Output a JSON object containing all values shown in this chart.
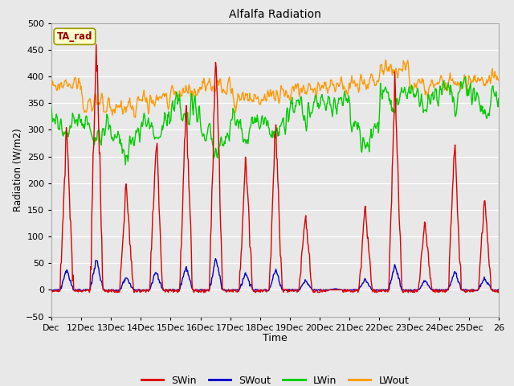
{
  "title": "Alfalfa Radiation",
  "xlabel": "Time",
  "ylabel": "Radiation (W/m2)",
  "ylim": [
    -50,
    500
  ],
  "xlim": [
    0,
    15
  ],
  "background_color": "#e8e8e8",
  "plot_bg_color": "#e8e8e8",
  "grid_color": "#ffffff",
  "annotation_text": "TA_rad",
  "annotation_bg": "#ffffcc",
  "annotation_border": "#999900",
  "annotation_text_color": "#990000",
  "line_colors": [
    "#dd0000",
    "#0000cc",
    "#00cc00",
    "#ff9900"
  ],
  "x_tick_labels": [
    "Dec",
    "12Dec",
    "13Dec",
    "14Dec",
    "15Dec",
    "16Dec",
    "17Dec",
    "18Dec",
    "19Dec",
    "20Dec",
    "21Dec",
    "22Dec",
    "23Dec",
    "24Dec",
    "25Dec",
    "26"
  ],
  "x_tick_positions": [
    0,
    1,
    2,
    3,
    4,
    5,
    6,
    7,
    8,
    9,
    10,
    11,
    12,
    13,
    14,
    15
  ],
  "yticks": [
    -50,
    0,
    50,
    100,
    150,
    200,
    250,
    300,
    350,
    400,
    450,
    500
  ],
  "day_peaks_SWin": [
    310,
    465,
    200,
    285,
    350,
    455,
    250,
    305,
    145,
    5,
    160,
    400,
    130,
    285,
    175
  ],
  "day_peaks_SWout": [
    38,
    58,
    25,
    35,
    43,
    60,
    32,
    38,
    18,
    2,
    20,
    50,
    18,
    35,
    22
  ],
  "LWin_day": [
    315,
    310,
    285,
    320,
    345,
    285,
    320,
    315,
    350,
    355,
    305,
    375,
    370,
    380,
    365
  ],
  "LWout_day": [
    385,
    350,
    345,
    355,
    370,
    385,
    355,
    365,
    375,
    380,
    385,
    415,
    380,
    385,
    395
  ]
}
